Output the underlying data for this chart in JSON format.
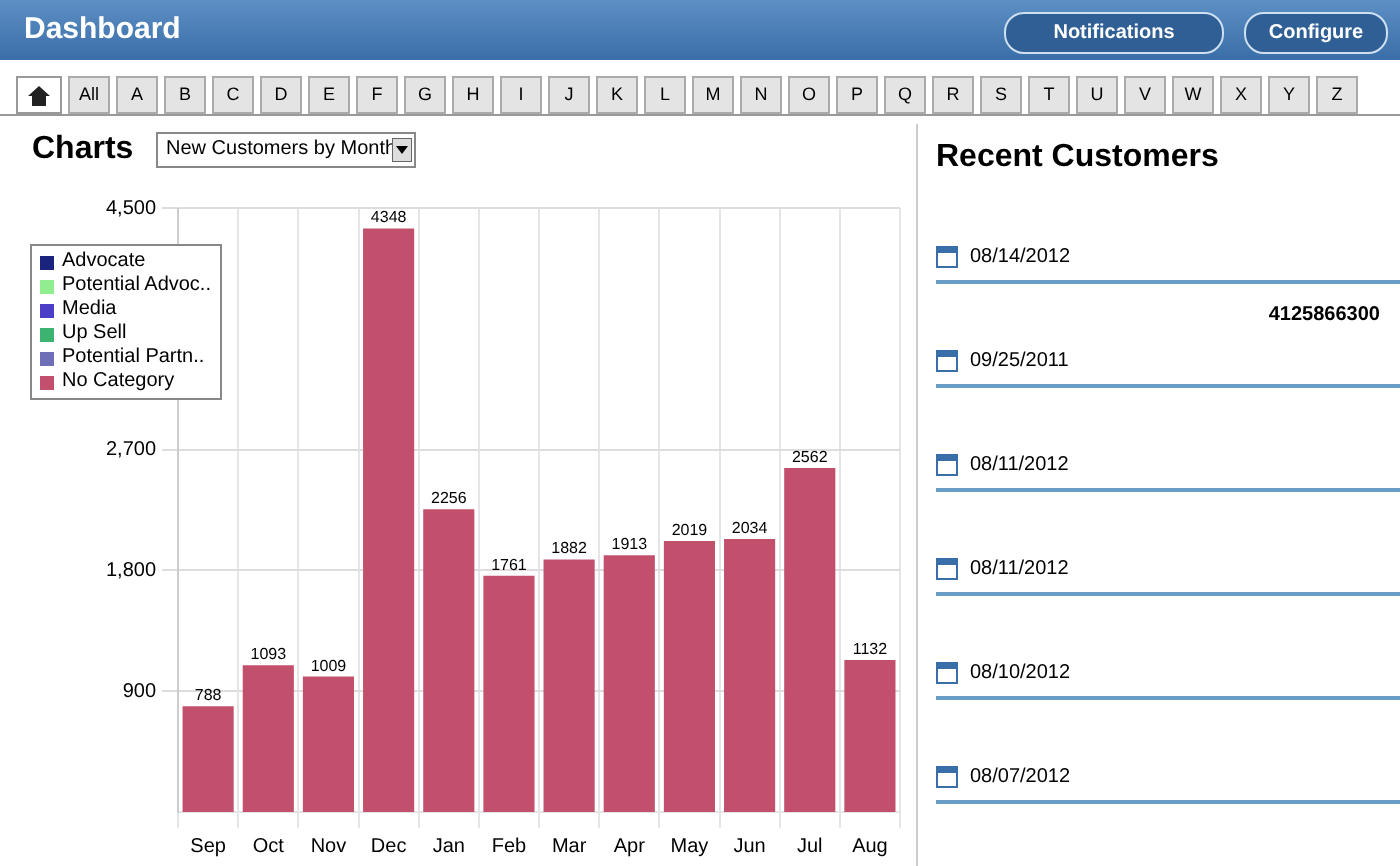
{
  "chart_data": [
    {
      "type": "other",
      "title": "Dashboard",
      "annotations": [
        "Notifications",
        "Configure",
        "All",
        "A",
        "B",
        "C",
        "D",
        "E",
        "F",
        "G",
        "H",
        "I",
        "J",
        "K",
        "L",
        "M",
        "N",
        "O",
        "P",
        "Q",
        "R",
        "S",
        "T",
        "U",
        "V",
        "W",
        "X",
        "Y",
        "Z"
      ]
    },
    {
      "type": "bar",
      "title": "Charts",
      "subtitle": "New Customers by Month",
      "categories": [
        "Sep",
        "Oct",
        "Nov",
        "Dec",
        "Jan",
        "Feb",
        "Mar",
        "Apr",
        "May",
        "Jun",
        "Jul",
        "Aug"
      ],
      "series": [
        {
          "name": "Advocate",
          "color": "#1a237e",
          "values": [
            0,
            0,
            0,
            0,
            0,
            0,
            0,
            0,
            0,
            0,
            0,
            0
          ]
        },
        {
          "name": "Potential Advoc..",
          "color": "#90ee90",
          "values": [
            0,
            0,
            0,
            0,
            0,
            0,
            0,
            0,
            0,
            0,
            0,
            0
          ]
        },
        {
          "name": "Media",
          "color": "#4b3fc8",
          "values": [
            0,
            0,
            0,
            0,
            0,
            0,
            0,
            0,
            0,
            0,
            0,
            0
          ]
        },
        {
          "name": "Up Sell",
          "color": "#3cb371",
          "values": [
            0,
            0,
            0,
            0,
            0,
            0,
            0,
            0,
            0,
            0,
            0,
            0
          ]
        },
        {
          "name": "Potential Partn..",
          "color": "#6f6fb8",
          "values": [
            0,
            0,
            0,
            0,
            0,
            0,
            0,
            0,
            0,
            0,
            0,
            0
          ]
        },
        {
          "name": "No Category",
          "color": "#c2506c",
          "values": [
            788,
            1093,
            1009,
            4348,
            2256,
            1761,
            1882,
            1913,
            2019,
            2034,
            2562,
            1132
          ],
          "value_labels": [
            "788",
            "1093",
            "1009",
            "4348",
            "2256",
            "1761",
            "1882",
            "1913",
            "2019",
            "2034",
            "2562",
            "1132"
          ]
        }
      ],
      "stacked": true,
      "ylim": [
        0,
        4500
      ],
      "yticks": [
        {
          "value": 900,
          "label": "900"
        },
        {
          "value": 1800,
          "label": "1,800"
        },
        {
          "value": 2700,
          "label": "2,700"
        },
        {
          "value": 4500,
          "label": "4,500"
        }
      ],
      "grid": true,
      "legend": "top left"
    },
    {
      "type": "other",
      "title": "Recent Customers",
      "annotations": [
        "08/14/2012",
        "4125866300",
        "09/25/2011",
        "08/11/2012",
        "08/11/2012",
        "08/10/2012",
        "08/07/2012"
      ]
    }
  ]
}
